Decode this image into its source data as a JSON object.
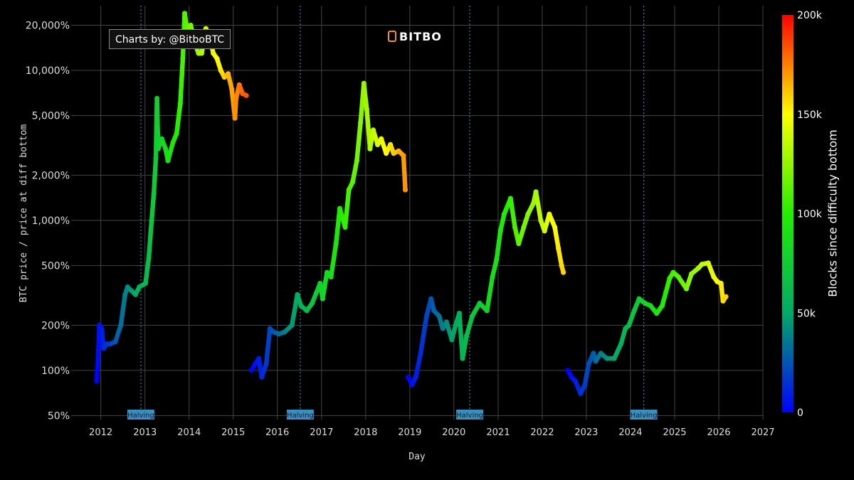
{
  "badge": "Charts by: @BitboBTC",
  "logo": "BITBO",
  "colorbar": {
    "label": "Blocks since difficulty bottom",
    "ticks": [
      {
        "value": 0,
        "label": "0"
      },
      {
        "value": 50000,
        "label": "50k"
      },
      {
        "value": 100000,
        "label": "100k"
      },
      {
        "value": 150000,
        "label": "150k"
      },
      {
        "value": 200000,
        "label": "200k"
      }
    ],
    "range": [
      0,
      200000
    ],
    "colors": [
      "#0000ff",
      "#00aa66",
      "#22ee00",
      "#ffff00",
      "#ff0000"
    ]
  },
  "chart_data": {
    "type": "scatter",
    "xlabel": "Day",
    "ylabel": "BTC price / price at diff bottom",
    "yscale": "log",
    "xlim": [
      "2011-05-01",
      "2027-01-01"
    ],
    "ylim": [
      47,
      27000
    ],
    "grid": true,
    "y_ticks": [
      {
        "value": 50,
        "label": "50%"
      },
      {
        "value": 100,
        "label": "100%"
      },
      {
        "value": 200,
        "label": "200%"
      },
      {
        "value": 500,
        "label": "500%"
      },
      {
        "value": 1000,
        "label": "1,000%"
      },
      {
        "value": 2000,
        "label": "2,000%"
      },
      {
        "value": 5000,
        "label": "5,000%"
      },
      {
        "value": 10000,
        "label": "10,000%"
      },
      {
        "value": 20000,
        "label": "20,000%"
      }
    ],
    "x_ticks": [
      "2012",
      "2013",
      "2014",
      "2015",
      "2016",
      "2017",
      "2018",
      "2019",
      "2020",
      "2021",
      "2022",
      "2023",
      "2024",
      "2025",
      "2026",
      "2027"
    ],
    "halvings": [
      {
        "date": "2012-11-28",
        "label": "Halving"
      },
      {
        "date": "2016-07-09",
        "label": "Halving"
      },
      {
        "date": "2020-05-11",
        "label": "Halving"
      },
      {
        "date": "2024-04-20",
        "label": "Halving"
      }
    ],
    "series": [
      {
        "points": [
          [
            "2011-11-28",
            85,
            0
          ],
          [
            "2011-12-10",
            120,
            3000
          ],
          [
            "2011-12-20",
            200,
            5000
          ],
          [
            "2012-01-10",
            190,
            8000
          ],
          [
            "2012-01-25",
            140,
            11000
          ],
          [
            "2012-02-20",
            150,
            15000
          ],
          [
            "2012-03-20",
            150,
            19000
          ],
          [
            "2012-05-01",
            155,
            25000
          ],
          [
            "2012-06-15",
            200,
            32000
          ],
          [
            "2012-07-20",
            320,
            37000
          ],
          [
            "2012-08-10",
            360,
            40000
          ],
          [
            "2012-09-10",
            340,
            45000
          ],
          [
            "2012-10-15",
            320,
            50000
          ],
          [
            "2012-11-15",
            360,
            55000
          ],
          [
            "2013-01-05",
            380,
            61000
          ],
          [
            "2013-02-01",
            560,
            65000
          ],
          [
            "2013-02-25",
            1000,
            69000
          ],
          [
            "2013-03-15",
            1500,
            72000
          ],
          [
            "2013-04-01",
            2600,
            74000
          ],
          [
            "2013-04-10",
            6500,
            76000
          ],
          [
            "2013-04-20",
            3000,
            78000
          ],
          [
            "2013-05-20",
            3500,
            82000
          ],
          [
            "2013-06-20",
            3000,
            86000
          ],
          [
            "2013-07-10",
            2500,
            89000
          ],
          [
            "2013-08-20",
            3300,
            94000
          ],
          [
            "2013-09-20",
            3800,
            99000
          ],
          [
            "2013-10-20",
            6000,
            104000
          ],
          [
            "2013-11-10",
            12000,
            108000
          ],
          [
            "2013-11-25",
            24000,
            111000
          ],
          [
            "2013-12-20",
            18000,
            115000
          ],
          [
            "2014-01-15",
            20000,
            119000
          ],
          [
            "2014-02-20",
            15000,
            124000
          ],
          [
            "2014-03-20",
            13000,
            128000
          ],
          [
            "2014-04-15",
            13000,
            132000
          ],
          [
            "2014-05-20",
            19000,
            137000
          ],
          [
            "2014-06-20",
            17000,
            141000
          ],
          [
            "2014-07-20",
            13000,
            145000
          ],
          [
            "2014-08-20",
            12000,
            150000
          ],
          [
            "2014-09-20",
            10000,
            154000
          ],
          [
            "2014-10-20",
            9000,
            159000
          ],
          [
            "2014-11-20",
            9500,
            164000
          ],
          [
            "2014-12-20",
            7500,
            168000
          ],
          [
            "2015-01-15",
            4800,
            171000
          ],
          [
            "2015-01-25",
            6500,
            173000
          ],
          [
            "2015-02-20",
            8000,
            176000
          ],
          [
            "2015-03-20",
            7000,
            180000
          ],
          [
            "2015-04-20",
            6800,
            184000
          ]
        ]
      },
      {
        "points": [
          [
            "2015-06-01",
            100,
            0
          ],
          [
            "2015-07-01",
            110,
            4000
          ],
          [
            "2015-08-01",
            120,
            8000
          ],
          [
            "2015-08-25",
            90,
            11000
          ],
          [
            "2015-10-01",
            110,
            16000
          ],
          [
            "2015-11-01",
            190,
            21000
          ],
          [
            "2015-12-01",
            180,
            25000
          ],
          [
            "2016-01-15",
            175,
            31000
          ],
          [
            "2016-03-01",
            180,
            37000
          ],
          [
            "2016-05-01",
            200,
            45000
          ],
          [
            "2016-06-15",
            320,
            52000
          ],
          [
            "2016-07-15",
            270,
            56000
          ],
          [
            "2016-09-01",
            250,
            62000
          ],
          [
            "2016-10-15",
            280,
            68000
          ],
          [
            "2016-12-20",
            380,
            77000
          ],
          [
            "2017-01-10",
            300,
            80000
          ],
          [
            "2017-02-15",
            450,
            84000
          ],
          [
            "2017-03-20",
            420,
            88000
          ],
          [
            "2017-05-01",
            700,
            94000
          ],
          [
            "2017-06-01",
            1200,
            98000
          ],
          [
            "2017-07-15",
            900,
            104000
          ],
          [
            "2017-08-15",
            1600,
            108000
          ],
          [
            "2017-09-15",
            1800,
            112000
          ],
          [
            "2017-10-20",
            2500,
            117000
          ],
          [
            "2017-11-20",
            4500,
            122000
          ],
          [
            "2017-12-17",
            8200,
            126000
          ],
          [
            "2018-01-10",
            5500,
            129000
          ],
          [
            "2018-02-06",
            3000,
            132000
          ],
          [
            "2018-03-05",
            4000,
            136000
          ],
          [
            "2018-04-10",
            3200,
            141000
          ],
          [
            "2018-05-10",
            3500,
            145000
          ],
          [
            "2018-06-20",
            2800,
            150000
          ],
          [
            "2018-07-25",
            3200,
            155000
          ],
          [
            "2018-08-20",
            2800,
            159000
          ],
          [
            "2018-10-01",
            2900,
            164000
          ],
          [
            "2018-11-10",
            2700,
            169000
          ],
          [
            "2018-11-25",
            1600,
            171000
          ]
        ]
      },
      {
        "points": [
          [
            "2018-12-20",
            90,
            0
          ],
          [
            "2019-01-20",
            80,
            4000
          ],
          [
            "2019-02-20",
            90,
            8000
          ],
          [
            "2019-04-01",
            130,
            13000
          ],
          [
            "2019-05-20",
            230,
            20000
          ],
          [
            "2019-06-26",
            300,
            25000
          ],
          [
            "2019-07-20",
            250,
            28000
          ],
          [
            "2019-09-01",
            230,
            33000
          ],
          [
            "2019-10-01",
            190,
            37000
          ],
          [
            "2019-11-01",
            210,
            41000
          ],
          [
            "2019-12-15",
            160,
            47000
          ],
          [
            "2020-01-15",
            200,
            51000
          ],
          [
            "2020-02-15",
            240,
            55000
          ],
          [
            "2020-03-13",
            120,
            58000
          ],
          [
            "2020-04-15",
            170,
            63000
          ],
          [
            "2020-06-01",
            230,
            69000
          ],
          [
            "2020-08-01",
            280,
            75000
          ],
          [
            "2020-10-01",
            250,
            81000
          ],
          [
            "2020-11-15",
            420,
            86000
          ],
          [
            "2020-12-20",
            550,
            90000
          ],
          [
            "2021-01-20",
            850,
            94000
          ],
          [
            "2021-02-20",
            1100,
            98000
          ],
          [
            "2021-04-14",
            1400,
            104000
          ],
          [
            "2021-05-20",
            900,
            109000
          ],
          [
            "2021-06-20",
            700,
            113000
          ],
          [
            "2021-08-01",
            900,
            118000
          ],
          [
            "2021-09-05",
            1100,
            122000
          ],
          [
            "2021-10-20",
            1300,
            127000
          ],
          [
            "2021-11-10",
            1550,
            130000
          ],
          [
            "2021-12-20",
            1000,
            135000
          ],
          [
            "2022-01-20",
            850,
            139000
          ],
          [
            "2022-03-01",
            1100,
            145000
          ],
          [
            "2022-04-15",
            900,
            150000
          ],
          [
            "2022-05-15",
            650,
            154000
          ],
          [
            "2022-06-10",
            500,
            157000
          ],
          [
            "2022-06-25",
            450,
            159000
          ]
        ]
      },
      {
        "points": [
          [
            "2022-08-01",
            100,
            0
          ],
          [
            "2022-09-01",
            90,
            4000
          ],
          [
            "2022-10-01",
            85,
            8000
          ],
          [
            "2022-11-15",
            70,
            13000
          ],
          [
            "2022-12-20",
            80,
            18000
          ],
          [
            "2023-01-20",
            110,
            22000
          ],
          [
            "2023-03-01",
            130,
            27000
          ],
          [
            "2023-03-20",
            115,
            30000
          ],
          [
            "2023-05-01",
            130,
            36000
          ],
          [
            "2023-06-20",
            120,
            42000
          ],
          [
            "2023-08-20",
            120,
            49000
          ],
          [
            "2023-10-15",
            150,
            55000
          ],
          [
            "2023-11-20",
            190,
            60000
          ],
          [
            "2023-12-20",
            200,
            64000
          ],
          [
            "2024-02-01",
            250,
            69000
          ],
          [
            "2024-03-13",
            300,
            74000
          ],
          [
            "2024-05-01",
            280,
            80000
          ],
          [
            "2024-06-15",
            270,
            85000
          ],
          [
            "2024-08-05",
            240,
            91000
          ],
          [
            "2024-09-20",
            270,
            96000
          ],
          [
            "2024-11-20",
            410,
            104000
          ],
          [
            "2024-12-20",
            450,
            107000
          ],
          [
            "2025-02-01",
            420,
            112000
          ],
          [
            "2025-04-08",
            350,
            119000
          ],
          [
            "2025-05-20",
            440,
            124000
          ],
          [
            "2025-07-15",
            480,
            130000
          ],
          [
            "2025-08-15",
            510,
            134000
          ],
          [
            "2025-10-06",
            520,
            140000
          ],
          [
            "2025-11-20",
            420,
            145000
          ],
          [
            "2025-12-20",
            390,
            149000
          ],
          [
            "2026-01-20",
            380,
            153000
          ],
          [
            "2026-02-05",
            290,
            156000
          ],
          [
            "2026-03-01",
            310,
            159000
          ]
        ]
      }
    ]
  }
}
